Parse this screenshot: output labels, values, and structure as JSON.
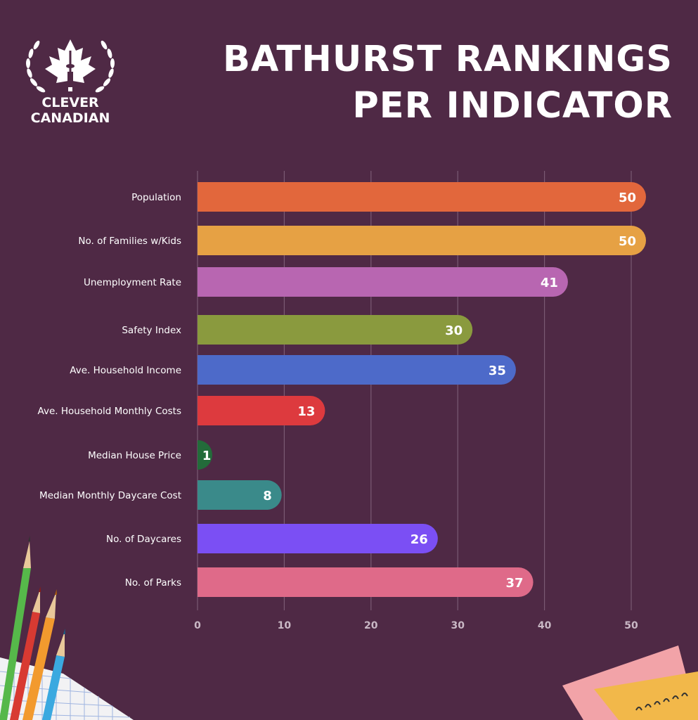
{
  "brand": {
    "line1": "CLEVER",
    "line2": "CANADIAN"
  },
  "colors": {
    "background": "#4f2945",
    "grid": "#7a5a73",
    "label": "#ffffff",
    "tick": "#c9b8c5"
  },
  "chart_data": {
    "type": "bar",
    "orientation": "horizontal",
    "title_lines": [
      "BATHURST RANKINGS",
      "PER INDICATOR"
    ],
    "categories": [
      "Population",
      "No. of Families w/Kids",
      "Unemployment Rate",
      "Safety Index",
      "Ave. Household Income",
      "Ave. Household Monthly Costs",
      "Median House Price",
      "Median Monthly Daycare Cost",
      "No. of Daycares",
      "No. of Parks"
    ],
    "values": [
      50,
      50,
      41,
      30,
      35,
      13,
      1,
      8,
      26,
      37
    ],
    "bar_colors": [
      "#e2673c",
      "#e6a144",
      "#b866b1",
      "#8a9a3e",
      "#4d6ac9",
      "#dd3a3e",
      "#236b3a",
      "#3a8a8a",
      "#7b4ff4",
      "#df6a89"
    ],
    "x_ticks": [
      0,
      10,
      20,
      30,
      40,
      50
    ],
    "xlim": [
      0,
      50
    ],
    "grid": true
  }
}
